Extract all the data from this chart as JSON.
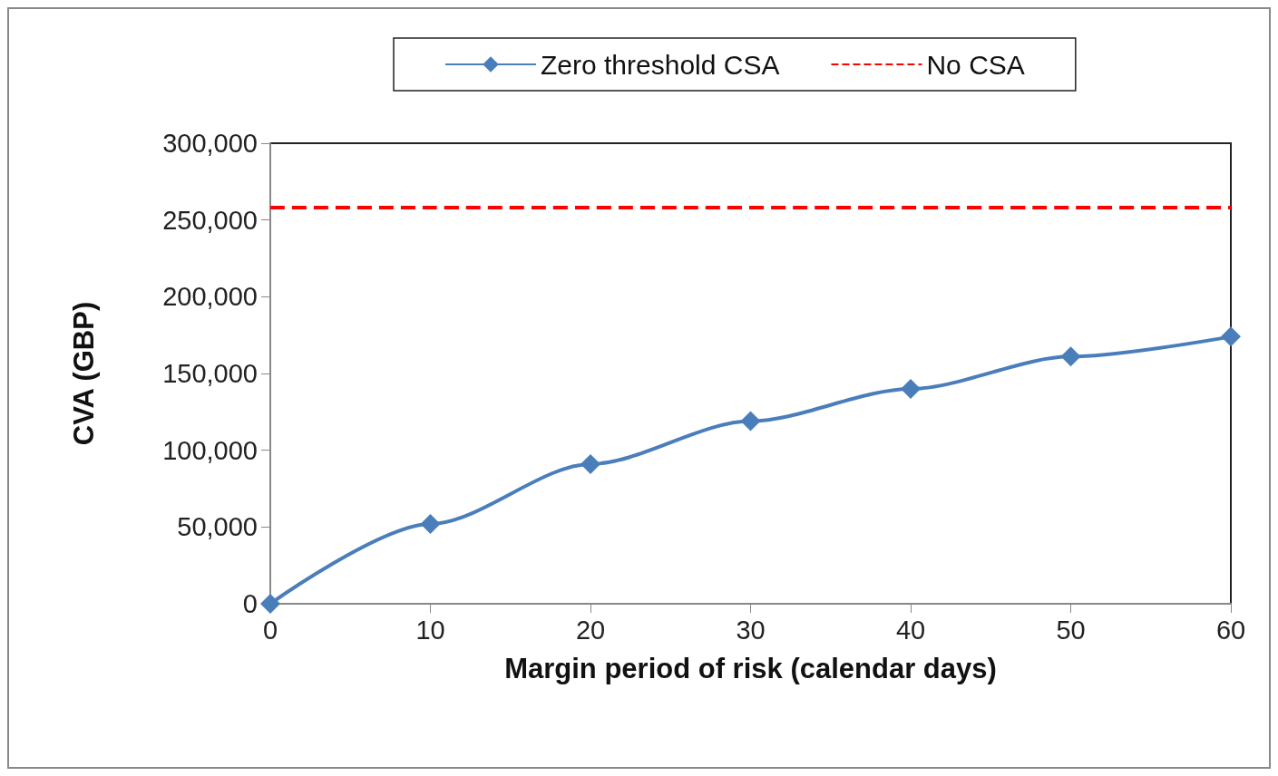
{
  "chart_data": {
    "type": "line",
    "xlabel": "Margin period of risk (calendar days)",
    "ylabel": "CVA (GBP)",
    "x": [
      0,
      10,
      20,
      30,
      40,
      50,
      60
    ],
    "xlim": [
      0,
      60
    ],
    "xticks": [
      0,
      10,
      20,
      30,
      40,
      50,
      60
    ],
    "ylim": [
      0,
      300000
    ],
    "yticks": [
      0,
      {
        "value": 50000,
        "label": "50,000"
      },
      {
        "value": 100000,
        "label": "100,000"
      },
      {
        "value": 150000,
        "label": "150,000"
      },
      {
        "value": 200000,
        "label": "200,000"
      },
      {
        "value": 250000,
        "label": "250,000"
      },
      {
        "value": 300000,
        "label": "300,000"
      }
    ],
    "grid": false,
    "legend": "top",
    "series": [
      {
        "name": "Zero threshold CSA",
        "color": "#4a7ebb",
        "marker": "diamond",
        "line_style": "solid",
        "values": [
          0,
          52000,
          91000,
          119000,
          140000,
          161000,
          174000
        ]
      },
      {
        "name": "No CSA",
        "color": "#ff0000",
        "marker": "none",
        "line_style": "dashed",
        "x": [
          0,
          60
        ],
        "values": [
          258000,
          258000
        ]
      }
    ]
  }
}
